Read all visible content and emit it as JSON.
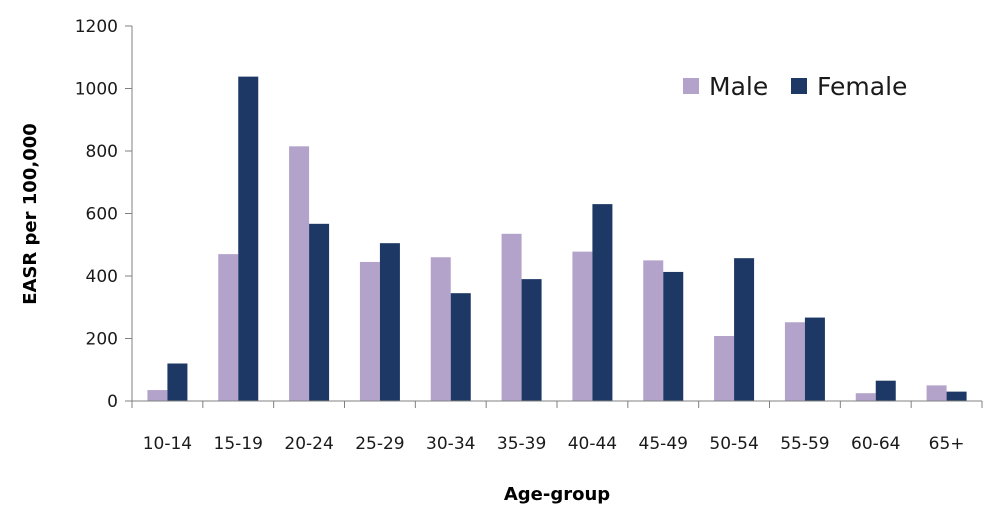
{
  "chart_data": {
    "type": "bar",
    "title": "",
    "xlabel": "Age-group",
    "ylabel": "EASR per 100,000",
    "ylim": [
      0,
      1200
    ],
    "yticks": [
      0,
      200,
      400,
      600,
      800,
      1000,
      1200
    ],
    "grid": false,
    "legend_position": "top-right",
    "categories": [
      "10-14",
      "15-19",
      "20-24",
      "25-29",
      "30-34",
      "35-39",
      "40-44",
      "45-49",
      "50-54",
      "55-59",
      "60-64",
      "65+"
    ],
    "series": [
      {
        "name": "Male",
        "color": "#b3a3cb",
        "values": [
          35,
          470,
          815,
          445,
          460,
          535,
          478,
          450,
          208,
          252,
          25,
          50
        ]
      },
      {
        "name": "Female",
        "color": "#1d3864",
        "values": [
          120,
          1038,
          567,
          505,
          345,
          390,
          630,
          413,
          457,
          267,
          65,
          30
        ]
      }
    ]
  }
}
